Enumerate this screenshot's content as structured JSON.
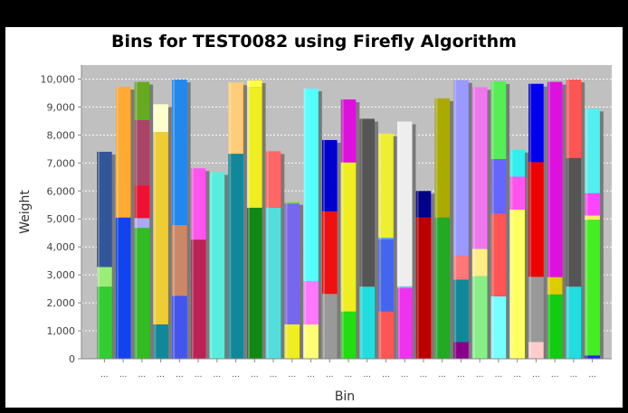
{
  "chart_data": {
    "type": "bar",
    "title": "Bins for TEST0082 using Firefly Algorithm",
    "xlabel": "Bin",
    "ylabel": "Weight",
    "ylim": [
      0,
      10500
    ],
    "yticks": [
      0,
      1000,
      2000,
      3000,
      4000,
      5000,
      6000,
      7000,
      8000,
      9000,
      10000
    ],
    "ytick_labels": [
      "0",
      "1,000",
      "2,000",
      "3,000",
      "4,000",
      "5,000",
      "6,000",
      "7,000",
      "8,000",
      "9,000",
      "10,000"
    ],
    "category_label": "...",
    "stacked": true,
    "grid": true,
    "plot_background": "#c0c0c0",
    "bins": [
      [
        {
          "v": 2580,
          "c": "#33cc33"
        },
        {
          "v": 700,
          "c": "#99ee77"
        },
        {
          "v": 4120,
          "c": "#335599"
        }
      ],
      [
        {
          "v": 5050,
          "c": "#1144ee"
        },
        {
          "v": 4670,
          "c": "#ffaa33"
        }
      ],
      [
        {
          "v": 4680,
          "c": "#33bb22"
        },
        {
          "v": 350,
          "c": "#aaaaee"
        },
        {
          "v": 1170,
          "c": "#ee1133"
        },
        {
          "v": 2330,
          "c": "#aa4466"
        },
        {
          "v": 1370,
          "c": "#66aa22"
        }
      ],
      [
        {
          "v": 1230,
          "c": "#118899"
        },
        {
          "v": 6880,
          "c": "#eecc33"
        },
        {
          "v": 990,
          "c": "#ffffcc"
        }
      ],
      [
        {
          "v": 2250,
          "c": "#4455ee"
        },
        {
          "v": 2530,
          "c": "#cc8866"
        },
        {
          "v": 5200,
          "c": "#2288ee"
        }
      ],
      [
        {
          "v": 4260,
          "c": "#bb2255"
        },
        {
          "v": 2550,
          "c": "#ff55ee"
        }
      ],
      [
        {
          "v": 6670,
          "c": "#55eedd"
        }
      ],
      [
        {
          "v": 7330,
          "c": "#118899"
        },
        {
          "v": 2550,
          "c": "#ffcc77"
        }
      ],
      [
        {
          "v": 5400,
          "c": "#118811"
        },
        {
          "v": 4320,
          "c": "#eeee22"
        },
        {
          "v": 230,
          "c": "#ffff44"
        }
      ],
      [
        {
          "v": 5400,
          "c": "#55dddd"
        },
        {
          "v": 2020,
          "c": "#ff6666"
        }
      ],
      [
        {
          "v": 1230,
          "c": "#eeee22"
        },
        {
          "v": 4320,
          "c": "#7766ee"
        },
        {
          "v": 50,
          "c": "#66dd33"
        }
      ],
      [
        {
          "v": 1230,
          "c": "#ffff77"
        },
        {
          "v": 1550,
          "c": "#ff77ff"
        },
        {
          "v": 6880,
          "c": "#55ffff"
        }
      ],
      [
        {
          "v": 2320,
          "c": "#999999"
        },
        {
          "v": 2950,
          "c": "#ee1111"
        },
        {
          "v": 2550,
          "c": "#0000cc"
        }
      ],
      [
        {
          "v": 1690,
          "c": "#22dd11"
        },
        {
          "v": 5330,
          "c": "#eeee22"
        },
        {
          "v": 2250,
          "c": "#dd11dd"
        }
      ],
      [
        {
          "v": 2580,
          "c": "#22dddd"
        },
        {
          "v": 6000,
          "c": "#555555"
        }
      ],
      [
        {
          "v": 1690,
          "c": "#ff5555"
        },
        {
          "v": 2580,
          "c": "#4466ee"
        },
        {
          "v": 60,
          "c": "#55aaee"
        },
        {
          "v": 3720,
          "c": "#eeee33"
        }
      ],
      [
        {
          "v": 2530,
          "c": "#ee33ee"
        },
        {
          "v": 60,
          "c": "#66ccee"
        },
        {
          "v": 5890,
          "c": "#eeeeee"
        }
      ],
      [
        {
          "v": 5050,
          "c": "#bb0000"
        },
        {
          "v": 950,
          "c": "#000088"
        }
      ],
      [
        {
          "v": 5050,
          "c": "#22aa22"
        },
        {
          "v": 4260,
          "c": "#aaaa00"
        }
      ],
      [
        {
          "v": 600,
          "c": "#880088"
        },
        {
          "v": 2230,
          "c": "#118899"
        },
        {
          "v": 850,
          "c": "#ff7777"
        },
        {
          "v": 6280,
          "c": "#9999ff"
        }
      ],
      [
        {
          "v": 2950,
          "c": "#88ee88"
        },
        {
          "v": 980,
          "c": "#ffee88"
        },
        {
          "v": 5780,
          "c": "#ee77ee"
        }
      ],
      [
        {
          "v": 2230,
          "c": "#77ffff"
        },
        {
          "v": 2960,
          "c": "#ff5555"
        },
        {
          "v": 1950,
          "c": "#6666ff"
        },
        {
          "v": 2780,
          "c": "#55ee55"
        }
      ],
      [
        {
          "v": 5330,
          "c": "#ffff66"
        },
        {
          "v": 1180,
          "c": "#ff55ee"
        },
        {
          "v": 960,
          "c": "#33eeee"
        }
      ],
      [
        {
          "v": 600,
          "c": "#ffcccc"
        },
        {
          "v": 2330,
          "c": "#999999"
        },
        {
          "v": 4100,
          "c": "#ee0000"
        },
        {
          "v": 2800,
          "c": "#0000ee"
        }
      ],
      [
        {
          "v": 2300,
          "c": "#11cc11"
        },
        {
          "v": 620,
          "c": "#ddcc00"
        },
        {
          "v": 6980,
          "c": "#dd11dd"
        }
      ],
      [
        {
          "v": 2580,
          "c": "#22dddd"
        },
        {
          "v": 4600,
          "c": "#555555"
        },
        {
          "v": 2800,
          "c": "#ff5555"
        }
      ],
      [
        {
          "v": 120,
          "c": "#2222ee"
        },
        {
          "v": 4850,
          "c": "#44ee22"
        },
        {
          "v": 150,
          "c": "#ffee66"
        },
        {
          "v": 800,
          "c": "#ff44ff"
        },
        {
          "v": 3020,
          "c": "#55eeee"
        }
      ]
    ]
  }
}
